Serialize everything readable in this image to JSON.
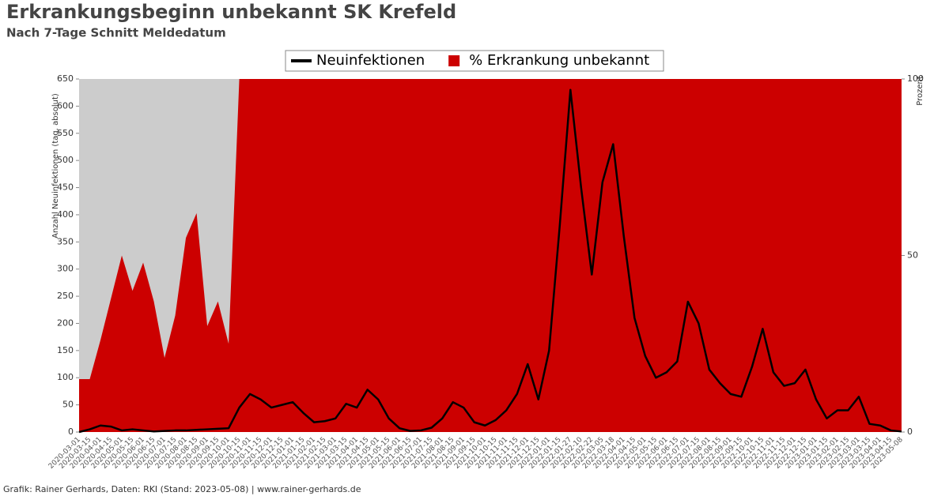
{
  "chart_data": {
    "type": "line",
    "title": "Erkrankungsbeginn unbekannt SK Krefeld",
    "subtitle": "Nach 7-Tage Schnitt Meldedatum",
    "ylabel": "Anzahl Neuinfektionen (tag. absolut)",
    "y2label": "Prozent",
    "source": "Grafik: Rainer Gerhards, Daten: RKI (Stand: 2023-05-08) | www.rainer-gerhards.de",
    "categories": [
      "2020-03-01",
      "2020-03-15",
      "2020-04-01",
      "2020-04-15",
      "2020-05-01",
      "2020-05-15",
      "2020-06-01",
      "2020-06-15",
      "2020-07-01",
      "2020-07-15",
      "2020-08-01",
      "2020-08-15",
      "2020-09-01",
      "2020-09-15",
      "2020-10-01",
      "2020-10-15",
      "2020-11-01",
      "2020-11-15",
      "2020-12-01",
      "2020-12-15",
      "2021-01-01",
      "2021-01-15",
      "2021-02-01",
      "2021-02-15",
      "2021-03-01",
      "2021-03-15",
      "2021-04-01",
      "2021-04-15",
      "2021-05-01",
      "2021-05-15",
      "2021-06-01",
      "2021-06-15",
      "2021-07-01",
      "2021-07-15",
      "2021-08-01",
      "2021-08-15",
      "2021-09-01",
      "2021-09-15",
      "2021-10-01",
      "2021-10-15",
      "2021-11-01",
      "2021-11-15",
      "2021-12-01",
      "2021-12-15",
      "2022-01-01",
      "2022-01-15",
      "2022-01-27",
      "2022-02-10",
      "2022-02-22",
      "2022-03-05",
      "2022-03-18",
      "2022-04-01",
      "2022-04-15",
      "2022-05-01",
      "2022-05-15",
      "2022-06-01",
      "2022-06-15",
      "2022-07-01",
      "2022-07-15",
      "2022-08-01",
      "2022-08-15",
      "2022-09-01",
      "2022-09-15",
      "2022-10-01",
      "2022-10-15",
      "2022-11-01",
      "2022-11-15",
      "2022-12-01",
      "2022-12-15",
      "2023-01-01",
      "2023-01-15",
      "2023-02-01",
      "2023-02-15",
      "2023-03-01",
      "2023-03-15",
      "2023-04-01",
      "2023-04-15",
      "2023-05-08"
    ],
    "series": [
      {
        "name": "% Erkrankung unbekannt",
        "color": "#cc0000",
        "type": "area",
        "axis": "y2",
        "values": [
          15,
          15,
          26,
          38,
          50,
          40,
          48,
          37,
          21,
          33,
          55,
          62,
          30,
          37,
          25,
          100,
          100,
          100,
          100,
          100,
          100,
          100,
          100,
          100,
          100,
          100,
          100,
          100,
          100,
          100,
          100,
          100,
          100,
          100,
          100,
          100,
          100,
          100,
          100,
          100,
          100,
          100,
          100,
          100,
          100,
          100,
          100,
          100,
          100,
          100,
          100,
          100,
          100,
          100,
          100,
          100,
          100,
          100,
          100,
          100,
          100,
          100,
          100,
          100,
          100,
          100,
          100,
          100,
          100,
          100,
          100,
          100,
          100,
          100,
          100,
          100,
          100,
          100
        ]
      },
      {
        "name": "Neuinfektionen",
        "color": "#000000",
        "type": "line",
        "values": [
          0,
          5,
          12,
          10,
          3,
          5,
          3,
          1,
          2,
          3,
          3,
          4,
          5,
          6,
          7,
          45,
          70,
          60,
          45,
          50,
          55,
          35,
          18,
          20,
          25,
          52,
          45,
          78,
          60,
          25,
          7,
          2,
          3,
          8,
          25,
          55,
          45,
          18,
          12,
          22,
          40,
          70,
          125,
          60,
          150,
          380,
          630,
          450,
          290,
          460,
          530,
          360,
          210,
          140,
          100,
          110,
          130,
          240,
          200,
          115,
          90,
          70,
          65,
          120,
          190,
          110,
          85,
          90,
          115,
          60,
          25,
          40,
          40,
          65,
          15,
          12,
          3,
          1
        ]
      }
    ],
    "ylim": [
      0,
      650
    ],
    "yticks": [
      0,
      50,
      100,
      150,
      200,
      250,
      300,
      350,
      400,
      450,
      500,
      550,
      600,
      650
    ],
    "y2lim": [
      0,
      100
    ],
    "y2ticks": [
      0,
      50,
      100
    ]
  }
}
